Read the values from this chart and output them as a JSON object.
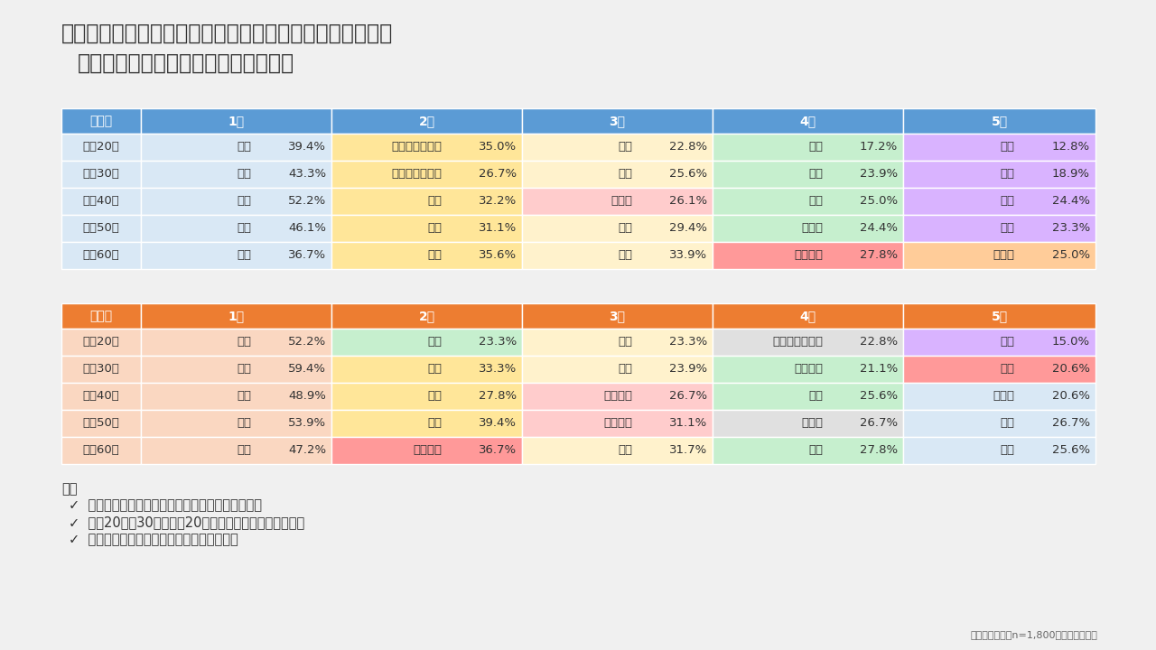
{
  "title_line1": "以下の一般健康診断の項目のうち、あなたが気にしている",
  "title_line2": "（注目している）項目はどれですか？",
  "male_header_color": "#5B9BD5",
  "female_header_color": "#ED7D31",
  "col_headers": [
    "性世代",
    "1位",
    "2位",
    "3位",
    "4位",
    "5位"
  ],
  "male_rows": [
    {
      "label": "男性20代",
      "cols": [
        {
          "text": "体重",
          "value": "39.4%",
          "bg": "#D9E8F5"
        },
        {
          "text": "気にしていない",
          "value": "35.0%",
          "bg": "#FFE699"
        },
        {
          "text": "視力",
          "value": "22.8%",
          "bg": "#FFF2CC"
        },
        {
          "text": "身長",
          "value": "17.2%",
          "bg": "#C6EFCE"
        },
        {
          "text": "腹囲",
          "value": "12.8%",
          "bg": "#D9B3FF"
        }
      ]
    },
    {
      "label": "男性30代",
      "cols": [
        {
          "text": "体重",
          "value": "43.3%",
          "bg": "#D9E8F5"
        },
        {
          "text": "気にしていない",
          "value": "26.7%",
          "bg": "#FFE699"
        },
        {
          "text": "視力",
          "value": "25.6%",
          "bg": "#FFF2CC"
        },
        {
          "text": "血圧",
          "value": "23.9%",
          "bg": "#C6EFCE"
        },
        {
          "text": "腹囲",
          "value": "18.9%",
          "bg": "#D9B3FF"
        }
      ]
    },
    {
      "label": "男性40代",
      "cols": [
        {
          "text": "体重",
          "value": "52.2%",
          "bg": "#D9E8F5"
        },
        {
          "text": "視力",
          "value": "32.2%",
          "bg": "#FFE699"
        },
        {
          "text": "肝機能",
          "value": "26.1%",
          "bg": "#FFCCCC"
        },
        {
          "text": "血圧",
          "value": "25.0%",
          "bg": "#C6EFCE"
        },
        {
          "text": "腹囲",
          "value": "24.4%",
          "bg": "#D9B3FF"
        }
      ]
    },
    {
      "label": "男性50代",
      "cols": [
        {
          "text": "体重",
          "value": "46.1%",
          "bg": "#D9E8F5"
        },
        {
          "text": "血圧",
          "value": "31.1%",
          "bg": "#FFE699"
        },
        {
          "text": "視力",
          "value": "29.4%",
          "bg": "#FFF2CC"
        },
        {
          "text": "血糖値",
          "value": "24.4%",
          "bg": "#C6EFCE"
        },
        {
          "text": "腹囲",
          "value": "23.3%",
          "bg": "#D9B3FF"
        }
      ]
    },
    {
      "label": "男性60代",
      "cols": [
        {
          "text": "体重",
          "value": "36.7%",
          "bg": "#D9E8F5"
        },
        {
          "text": "血圧",
          "value": "35.6%",
          "bg": "#FFE699"
        },
        {
          "text": "視力",
          "value": "33.9%",
          "bg": "#FFF2CC"
        },
        {
          "text": "血中脂質",
          "value": "27.8%",
          "bg": "#FF9999"
        },
        {
          "text": "肝機能",
          "value": "25.0%",
          "bg": "#FFCC99"
        }
      ]
    }
  ],
  "female_rows": [
    {
      "label": "女性20代",
      "cols": [
        {
          "text": "体重",
          "value": "52.2%",
          "bg": "#FAD7C1"
        },
        {
          "text": "身長",
          "value": "23.3%",
          "bg": "#C6EFCE"
        },
        {
          "text": "視力",
          "value": "23.3%",
          "bg": "#FFF2CC"
        },
        {
          "text": "気にしていない",
          "value": "22.8%",
          "bg": "#E0E0E0"
        },
        {
          "text": "腹囲",
          "value": "15.0%",
          "bg": "#D9B3FF"
        }
      ]
    },
    {
      "label": "女性30代",
      "cols": [
        {
          "text": "体重",
          "value": "59.4%",
          "bg": "#FAD7C1"
        },
        {
          "text": "視力",
          "value": "33.3%",
          "bg": "#FFE699"
        },
        {
          "text": "腹囲",
          "value": "23.9%",
          "bg": "#FFF2CC"
        },
        {
          "text": "血中脂質",
          "value": "21.1%",
          "bg": "#C6EFCE"
        },
        {
          "text": "貧血",
          "value": "20.6%",
          "bg": "#FF9999"
        }
      ]
    },
    {
      "label": "女性40代",
      "cols": [
        {
          "text": "体重",
          "value": "48.9%",
          "bg": "#FAD7C1"
        },
        {
          "text": "視力",
          "value": "27.8%",
          "bg": "#FFE699"
        },
        {
          "text": "血中脂質",
          "value": "26.7%",
          "bg": "#FFCCCC"
        },
        {
          "text": "腹囲",
          "value": "25.6%",
          "bg": "#C6EFCE"
        },
        {
          "text": "血糖値",
          "value": "20.6%",
          "bg": "#D9E8F5"
        }
      ]
    },
    {
      "label": "女性50代",
      "cols": [
        {
          "text": "体重",
          "value": "53.9%",
          "bg": "#FAD7C1"
        },
        {
          "text": "視力",
          "value": "39.4%",
          "bg": "#FFE699"
        },
        {
          "text": "血中脂質",
          "value": "31.1%",
          "bg": "#FFCCCC"
        },
        {
          "text": "血糖値",
          "value": "26.7%",
          "bg": "#E0E0E0"
        },
        {
          "text": "血圧",
          "value": "26.7%",
          "bg": "#D9E8F5"
        }
      ]
    },
    {
      "label": "女性60代",
      "cols": [
        {
          "text": "体重",
          "value": "47.2%",
          "bg": "#FAD7C1"
        },
        {
          "text": "血中脂質",
          "value": "36.7%",
          "bg": "#FF9999"
        },
        {
          "text": "視力",
          "value": "31.7%",
          "bg": "#FFF2CC"
        },
        {
          "text": "腹囲",
          "value": "27.8%",
          "bg": "#C6EFCE"
        },
        {
          "text": "血圧",
          "value": "25.6%",
          "bg": "#D9E8F5"
        }
      ]
    }
  ],
  "results_title": "結果",
  "results": [
    "どの性・世代でも体重が一位、視力、腹囲が上位",
    "男性20代、30代、女性20代では気にしていないが上位",
    "男性では血圧が、女性では血中脂質が上位"
  ],
  "footnote": "複数選択回答　n=1,800　丸善製薬調べ",
  "bg_color": "#F0F0F0",
  "text_color": "#333333"
}
